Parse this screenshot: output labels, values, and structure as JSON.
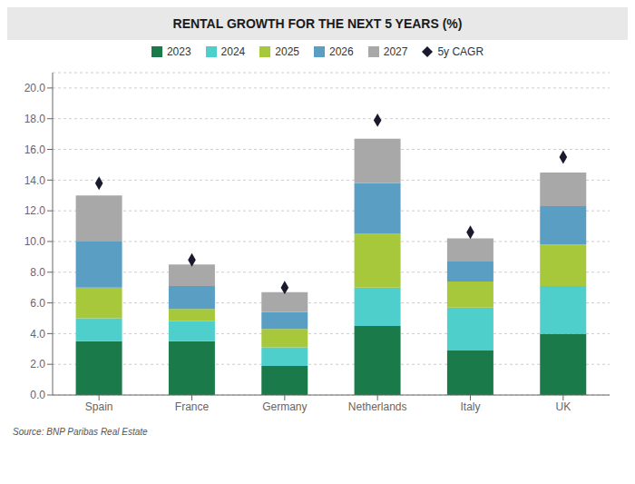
{
  "chart_data": {
    "type": "bar",
    "title": "RENTAL GROWTH FOR THE NEXT 5 YEARS (%)",
    "categories": [
      "Spain",
      "France",
      "Germany",
      "Netherlands",
      "Italy",
      "UK"
    ],
    "series": [
      {
        "name": "2023",
        "color": "#1a7a4a",
        "values": [
          3.5,
          3.5,
          1.9,
          4.5,
          2.9,
          4.0
        ]
      },
      {
        "name": "2024",
        "color": "#4ecfcc",
        "values": [
          1.5,
          1.3,
          1.2,
          2.5,
          2.8,
          3.1
        ]
      },
      {
        "name": "2025",
        "color": "#a8c83c",
        "values": [
          2.0,
          0.8,
          1.2,
          3.5,
          1.7,
          2.7
        ]
      },
      {
        "name": "2026",
        "color": "#5a9ec4",
        "values": [
          3.0,
          1.5,
          1.1,
          3.3,
          1.3,
          2.5
        ]
      },
      {
        "name": "2027",
        "color": "#a8a8a8",
        "values": [
          3.0,
          1.4,
          1.3,
          2.9,
          1.5,
          2.2
        ]
      },
      {
        "name": "5y CAGR",
        "type": "scatter",
        "marker": "diamond",
        "color": "#1a1a2e",
        "values": [
          13.8,
          8.8,
          7.0,
          17.9,
          10.6,
          15.5
        ]
      }
    ],
    "stacked": true,
    "ylim": [
      0,
      21
    ],
    "yticks": [
      {
        "value": 0.0,
        "label": "0.0"
      },
      {
        "value": 2.0,
        "label": "2.0"
      },
      {
        "value": 4.0,
        "label": "4.0"
      },
      {
        "value": 6.0,
        "label": "6.0"
      },
      {
        "value": 8.0,
        "label": "8.0"
      },
      {
        "value": 10.0,
        "label": "10.0"
      },
      {
        "value": 12.0,
        "label": "12.0"
      },
      {
        "value": 14.0,
        "label": "14.0"
      },
      {
        "value": 16.0,
        "label": "16.0"
      },
      {
        "value": 18.0,
        "label": "18.0"
      },
      {
        "value": 20.0,
        "label": "20.0"
      }
    ],
    "grid": true,
    "legend": "top",
    "annotations": [
      "Source: BNP Paribas Real Estate"
    ]
  }
}
